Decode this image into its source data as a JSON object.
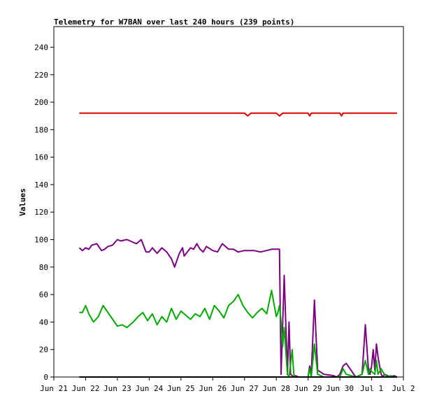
{
  "chart_data": {
    "type": "line",
    "title": "Telemetry for W7BAN over last 240 hours (239 points)",
    "xlabel": "",
    "ylabel": "Values",
    "xlim": [
      0,
      11
    ],
    "ylim": [
      0,
      255
    ],
    "x_ticks": [
      0,
      1,
      2,
      3,
      4,
      5,
      6,
      7,
      8,
      9,
      10,
      11
    ],
    "x_tick_labels": [
      "Jun 21",
      "Jun 22",
      "Jun 23",
      "Jun 24",
      "Jun 25",
      "Jun 26",
      "Jun 27",
      "Jun 28",
      "Jun 29",
      "Jun 30",
      "Jul 1",
      "Jul 2"
    ],
    "y_ticks": [
      0,
      20,
      40,
      60,
      80,
      100,
      120,
      140,
      160,
      180,
      200,
      220,
      240
    ],
    "grid": false,
    "legend": "none",
    "series": [
      {
        "color": "#dd0000",
        "x": [
          0.8,
          3.0,
          5.0,
          6.0,
          6.1,
          6.2,
          6.3,
          7.0,
          7.1,
          7.2,
          7.3,
          8.0,
          8.05,
          8.1,
          8.2,
          9.0,
          9.05,
          9.1,
          9.2,
          10.0,
          10.5,
          10.8
        ],
        "y": [
          192,
          192,
          192,
          192,
          190,
          192,
          192,
          192,
          190,
          192,
          192,
          192,
          190,
          192,
          192,
          192,
          190,
          192,
          192,
          192,
          192,
          192
        ]
      },
      {
        "color": "#7a0080",
        "x": [
          0.8,
          0.9,
          1.0,
          1.1,
          1.2,
          1.35,
          1.5,
          1.6,
          1.7,
          1.85,
          2.0,
          2.1,
          2.3,
          2.5,
          2.6,
          2.75,
          2.9,
          3.0,
          3.1,
          3.25,
          3.4,
          3.55,
          3.7,
          3.8,
          3.95,
          4.05,
          4.1,
          4.2,
          4.3,
          4.4,
          4.5,
          4.6,
          4.7,
          4.8,
          5.0,
          5.15,
          5.3,
          5.5,
          5.65,
          5.8,
          6.0,
          6.15,
          6.3,
          6.5,
          6.7,
          6.85,
          7.0,
          7.1,
          7.15,
          7.25,
          7.35,
          7.4,
          7.45,
          7.5,
          7.55,
          7.6,
          7.7,
          8.0,
          8.05,
          8.1,
          8.2,
          8.3,
          8.5,
          8.8,
          8.9,
          9.0,
          9.1,
          9.2,
          9.5,
          9.7,
          9.8,
          9.9,
          9.95,
          10.0,
          10.05,
          10.1,
          10.15,
          10.2,
          10.25,
          10.3,
          10.35,
          10.4,
          10.5,
          10.6,
          10.7,
          10.8
        ],
        "y": [
          94,
          92,
          94,
          93,
          96,
          97,
          92,
          93,
          95,
          96,
          100,
          99,
          100,
          98,
          97,
          100,
          91,
          91,
          94,
          90,
          94,
          91,
          86,
          80,
          90,
          94,
          88,
          91,
          94,
          93,
          97,
          93,
          91,
          95,
          92,
          91,
          97,
          93,
          93,
          91,
          92,
          92,
          92,
          91,
          92,
          93,
          93,
          93,
          2,
          74,
          2,
          40,
          2,
          1,
          0,
          1,
          0,
          0,
          8,
          2,
          56,
          5,
          2,
          1,
          0,
          2,
          8,
          10,
          0,
          2,
          38,
          5,
          2,
          8,
          20,
          5,
          24,
          15,
          8,
          2,
          0,
          2,
          1,
          0,
          1,
          0
        ]
      },
      {
        "color": "#00aa00",
        "x": [
          0.8,
          0.9,
          1.0,
          1.1,
          1.25,
          1.4,
          1.55,
          1.7,
          1.85,
          2.0,
          2.15,
          2.3,
          2.5,
          2.65,
          2.8,
          2.95,
          3.1,
          3.25,
          3.4,
          3.55,
          3.7,
          3.85,
          4.0,
          4.15,
          4.3,
          4.45,
          4.6,
          4.75,
          4.9,
          5.05,
          5.2,
          5.35,
          5.5,
          5.65,
          5.8,
          5.95,
          6.1,
          6.25,
          6.4,
          6.55,
          6.7,
          6.85,
          7.0,
          7.05,
          7.1,
          7.15,
          7.2,
          7.25,
          7.35,
          7.4,
          7.5,
          7.55,
          7.6,
          7.7,
          8.0,
          8.05,
          8.1,
          8.2,
          8.3,
          8.5,
          9.0,
          9.05,
          9.1,
          9.2,
          9.5,
          9.7,
          9.8,
          9.9,
          9.95,
          10.0,
          10.1,
          10.15,
          10.2,
          10.3,
          10.4,
          10.5,
          10.6,
          10.7,
          10.8
        ],
        "y": [
          47,
          47,
          52,
          46,
          40,
          44,
          52,
          47,
          42,
          37,
          38,
          36,
          40,
          44,
          47,
          41,
          46,
          38,
          44,
          40,
          50,
          42,
          48,
          45,
          42,
          46,
          44,
          50,
          42,
          52,
          48,
          43,
          52,
          55,
          60,
          52,
          47,
          43,
          47,
          50,
          46,
          63,
          44,
          47,
          52,
          40,
          22,
          36,
          2,
          0,
          20,
          2,
          0,
          0,
          0,
          6,
          0,
          24,
          2,
          0,
          0,
          3,
          6,
          2,
          0,
          2,
          12,
          2,
          6,
          4,
          2,
          12,
          2,
          6,
          2,
          0,
          1,
          0,
          0
        ]
      },
      {
        "color": "#000000",
        "x": [
          0.8,
          10.8
        ],
        "y": [
          0,
          0
        ]
      }
    ]
  }
}
